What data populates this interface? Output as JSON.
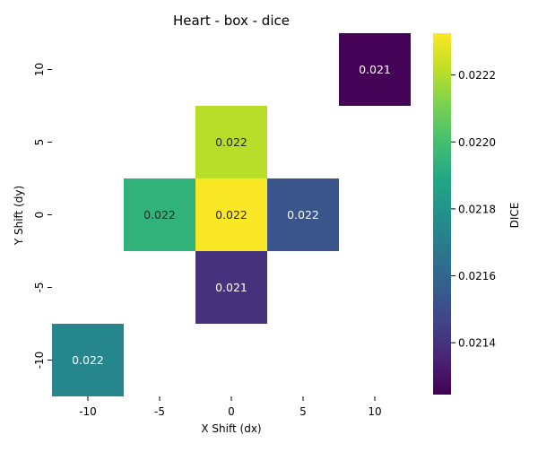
{
  "chart_data": {
    "type": "heatmap",
    "title": "Heart - box - dice",
    "xlabel": "X Shift (dx)",
    "ylabel": "Y Shift (dy)",
    "x_categories": [
      "-10",
      "-5",
      "0",
      "5",
      "10"
    ],
    "y_categories": [
      "10",
      "5",
      "0",
      "-5",
      "-10"
    ],
    "cells": [
      {
        "x": "10",
        "y": "10",
        "value": 0.02125,
        "label": "0.021"
      },
      {
        "x": "0",
        "y": "5",
        "value": 0.02221,
        "label": "0.022"
      },
      {
        "x": "-5",
        "y": "0",
        "value": 0.02194,
        "label": "0.022"
      },
      {
        "x": "0",
        "y": "0",
        "value": 0.02232,
        "label": "0.022"
      },
      {
        "x": "5",
        "y": "0",
        "value": 0.02153,
        "label": "0.022"
      },
      {
        "x": "0",
        "y": "-5",
        "value": 0.0214,
        "label": "0.021"
      },
      {
        "x": "-10",
        "y": "-10",
        "value": 0.02174,
        "label": "0.022"
      }
    ],
    "colorbar": {
      "label": "DICE",
      "vmin": 0.021245,
      "vmax": 0.022325,
      "ticks": [
        "0.0214",
        "0.0216",
        "0.0218",
        "0.0220",
        "0.0222"
      ],
      "colormap": "viridis"
    }
  }
}
